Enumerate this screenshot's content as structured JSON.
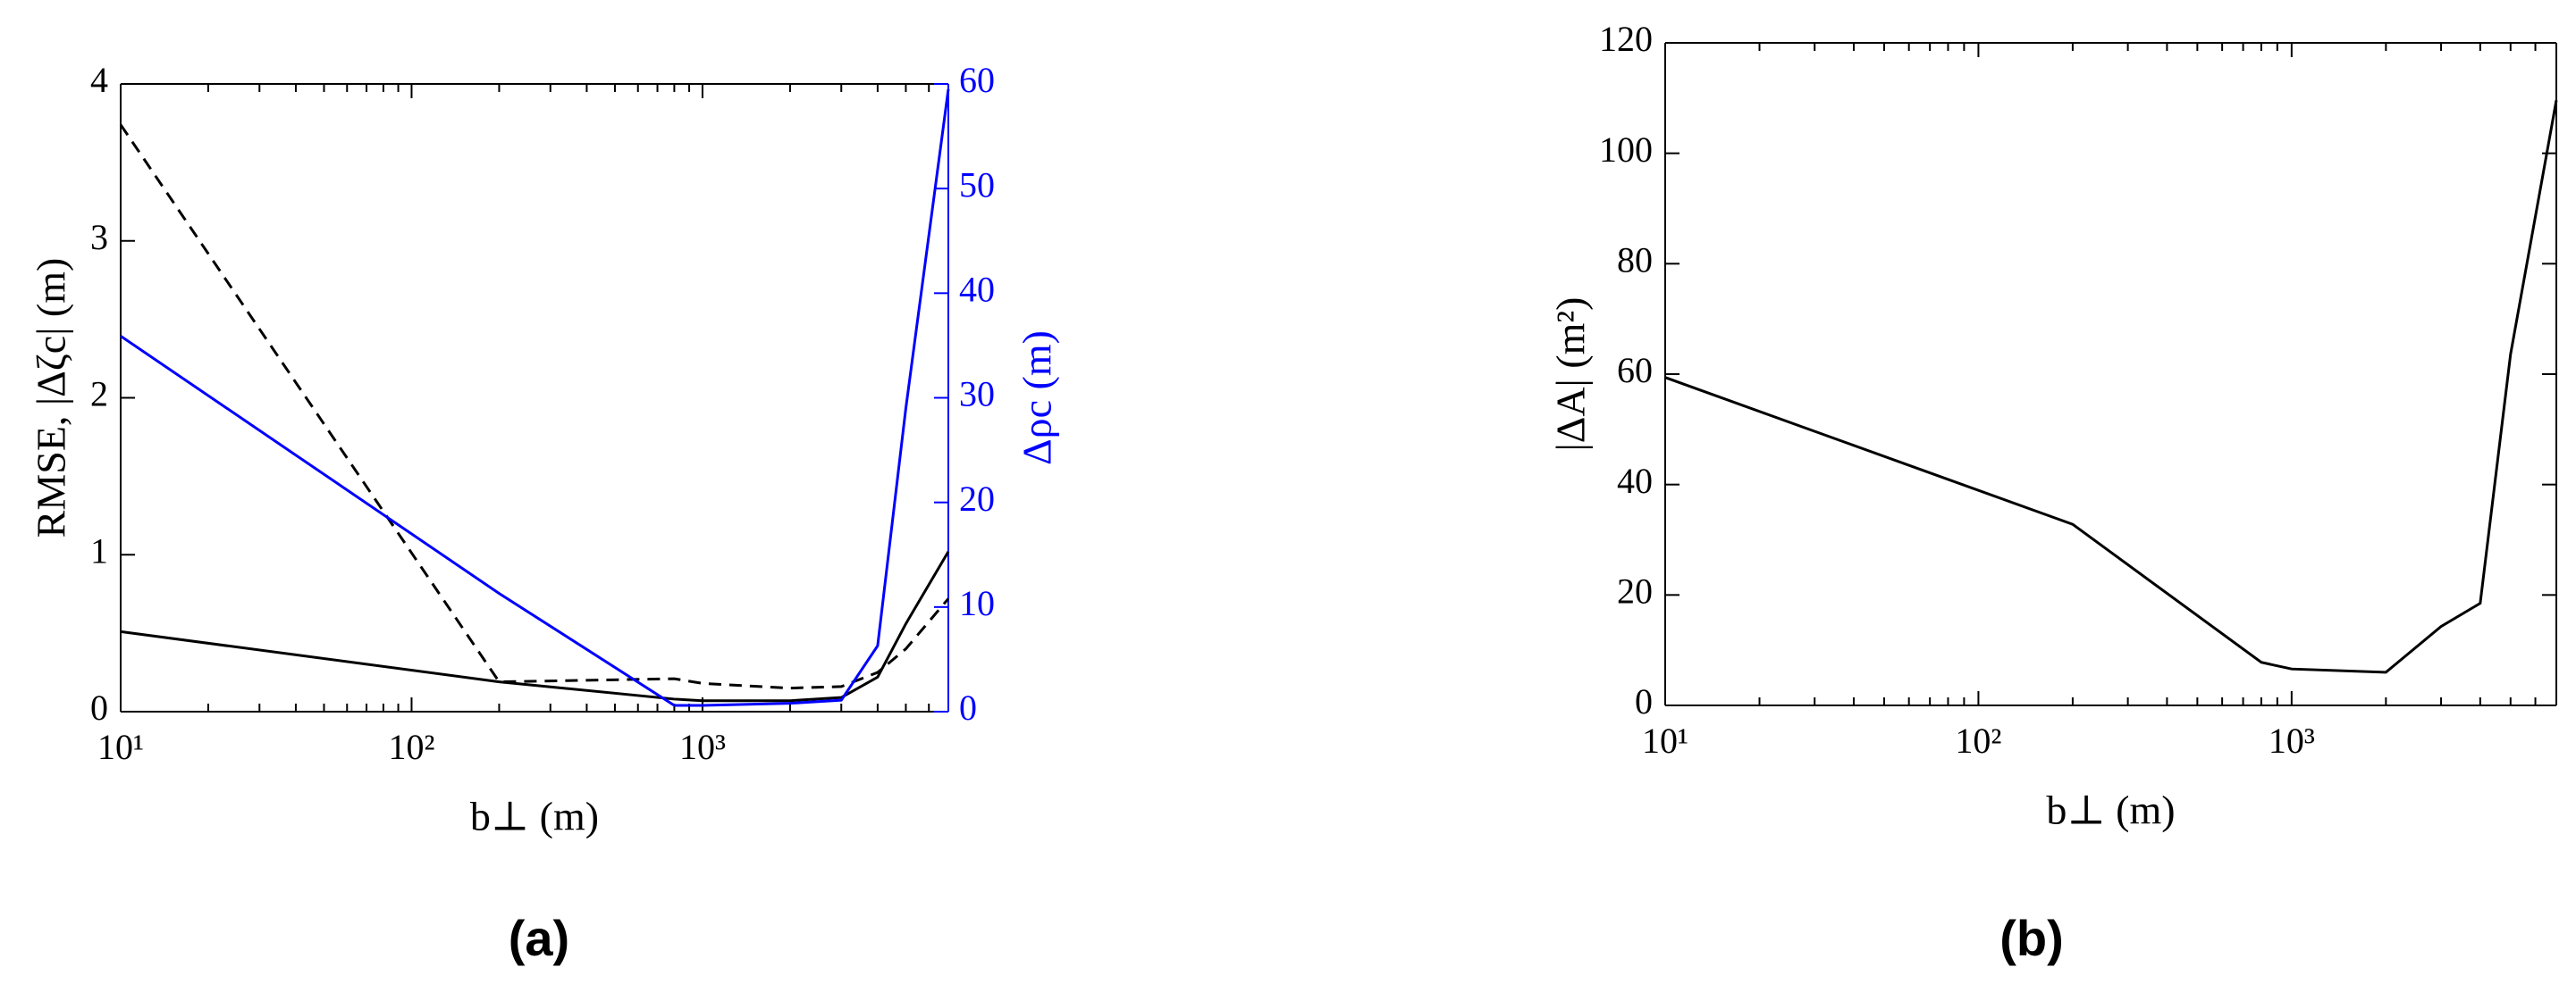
{
  "chart_data": [
    {
      "type": "line",
      "label": "(a)",
      "xlabel": "b⊥ (m)",
      "ylabel": "RMSE, |Δζc| (m)",
      "y2label": "Δρc (m)",
      "xscale": "log",
      "xlim": [
        10,
        7000
      ],
      "xticks": [
        {
          "value": 10,
          "label": "10¹"
        },
        {
          "value": 100,
          "label": "10²"
        },
        {
          "value": 1000,
          "label": "10³"
        }
      ],
      "ylim": [
        0,
        4
      ],
      "yticks": [
        0,
        1,
        2,
        3,
        4
      ],
      "y2lim": [
        0,
        60
      ],
      "y2ticks": [
        0,
        10,
        20,
        30,
        40,
        50,
        60
      ],
      "y2color": "#0000ff",
      "x": [
        10,
        200,
        800,
        1000,
        2000,
        3000,
        4000,
        5000,
        7000
      ],
      "series": [
        {
          "color": "#000000",
          "linestyle": "solid",
          "values": [
            0.51,
            0.19,
            0.08,
            0.07,
            0.07,
            0.09,
            0.22,
            0.56,
            1.02
          ]
        },
        {
          "color": "#000000",
          "linestyle": "dashed",
          "values": [
            3.74,
            0.19,
            0.21,
            0.18,
            0.15,
            0.16,
            0.25,
            0.4,
            0.72
          ]
        },
        {
          "color": "#0000ff",
          "linestyle": "solid",
          "axis": "y2",
          "values": [
            35.9,
            11.3,
            0.6,
            0.6,
            0.8,
            1.1,
            6.3,
            29,
            59.5
          ]
        }
      ]
    },
    {
      "type": "line",
      "label": "(b)",
      "xlabel": "b⊥ (m)",
      "ylabel": "|ΔA| (m²)",
      "xscale": "log",
      "xlim": [
        10,
        7000
      ],
      "xticks": [
        {
          "value": 10,
          "label": "10¹"
        },
        {
          "value": 100,
          "label": "10²"
        },
        {
          "value": 1000,
          "label": "10³"
        }
      ],
      "ylim": [
        0,
        120
      ],
      "yticks": [
        0,
        20,
        40,
        60,
        80,
        100,
        120
      ],
      "x": [
        10,
        200,
        800,
        1000,
        2000,
        3000,
        4000,
        5000,
        7000
      ],
      "series": [
        {
          "color": "#000000",
          "linestyle": "solid",
          "values": [
            59.4,
            32.8,
            7.8,
            6.6,
            6.0,
            14.3,
            18.5,
            63.6,
            109.6
          ]
        }
      ]
    }
  ]
}
